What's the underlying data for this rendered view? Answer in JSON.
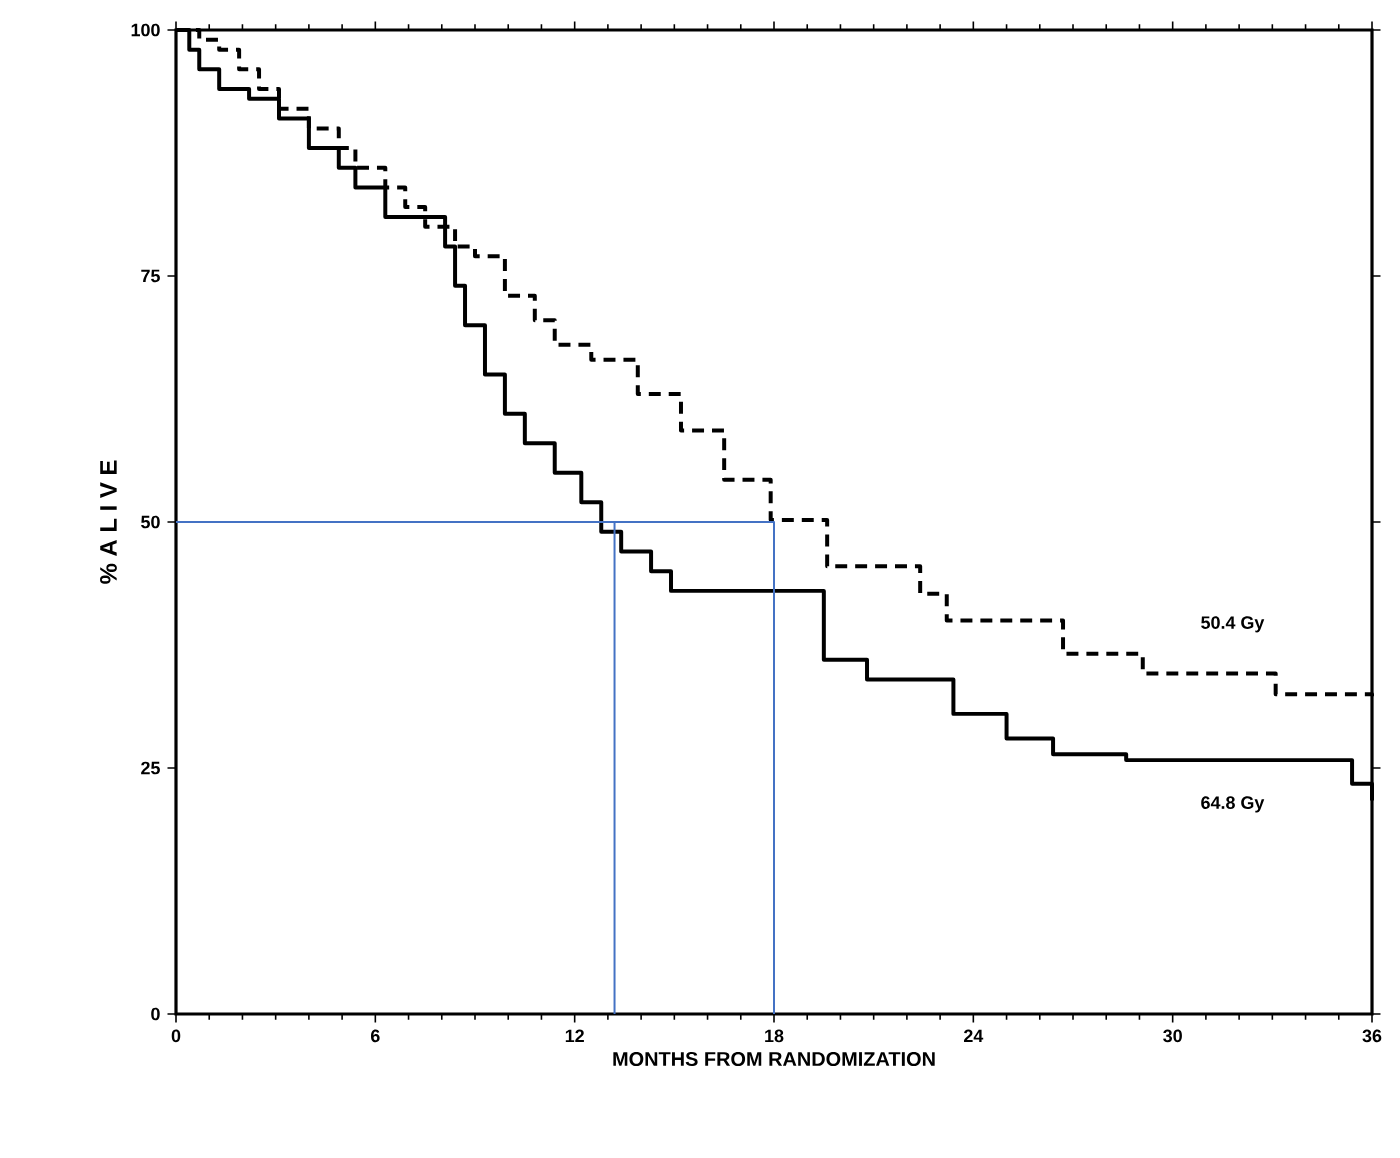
{
  "chart_data": {
    "type": "step",
    "xlabel": "MONTHS FROM RANDOMIZATION",
    "ylabel": "% A L I V E",
    "xlim": [
      0,
      36
    ],
    "ylim": [
      0,
      100
    ],
    "xticks": [
      0,
      6,
      12,
      18,
      24,
      30,
      36
    ],
    "yticks": [
      0,
      25,
      50,
      75,
      100
    ],
    "grid": false,
    "legend": false,
    "marker": "none",
    "series": [
      {
        "name": "50.4 Gy",
        "color": "#000000",
        "line_style": "dashed",
        "x": [
          0,
          0.7,
          1.3,
          1.9,
          2.5,
          3.1,
          4.0,
          4.9,
          5.4,
          6.3,
          6.9,
          7.5,
          8.4,
          9.0,
          9.9,
          10.8,
          11.4,
          12.5,
          13.9,
          15.2,
          16.5,
          17.9,
          19.6,
          22.4,
          23.2,
          26.7,
          29.1,
          33.1,
          36
        ],
        "values": [
          100,
          99,
          98,
          96,
          94,
          92,
          90,
          88,
          86,
          84,
          82,
          80,
          78,
          77,
          73,
          70.5,
          68,
          66.5,
          63,
          59.3,
          54.3,
          50.2,
          45.5,
          42.7,
          40,
          36.6,
          34.6,
          32.5,
          32.3
        ]
      },
      {
        "name": "64.8 Gy",
        "color": "#000000",
        "line_style": "solid",
        "x": [
          0,
          0.4,
          0.7,
          1.3,
          2.2,
          3.1,
          4.0,
          4.9,
          5.4,
          6.3,
          8.1,
          8.4,
          8.7,
          9.3,
          9.9,
          10.5,
          11.4,
          12.2,
          12.8,
          13.4,
          14.3,
          14.9,
          17.9,
          19.5,
          20.8,
          22.8,
          23.4,
          25.0,
          26.4,
          28.6,
          34.4,
          35.4,
          36
        ],
        "values": [
          100,
          98,
          96,
          94,
          93,
          91,
          88,
          86,
          84,
          81,
          78,
          74,
          70,
          65,
          61,
          58,
          55,
          52,
          49,
          47,
          45,
          43,
          43,
          36,
          34,
          34,
          30.5,
          28,
          26.4,
          25.8,
          25.8,
          23.4,
          21.7
        ]
      },
      {
        "type": "line",
        "color": "#4472c4",
        "line_style": "solid",
        "x": [
          0,
          18,
          18
        ],
        "values": [
          50,
          50,
          0
        ]
      },
      {
        "type": "line",
        "color": "#4472c4",
        "line_style": "solid",
        "x": [
          13.2,
          13.2
        ],
        "values": [
          50,
          0
        ]
      }
    ]
  }
}
